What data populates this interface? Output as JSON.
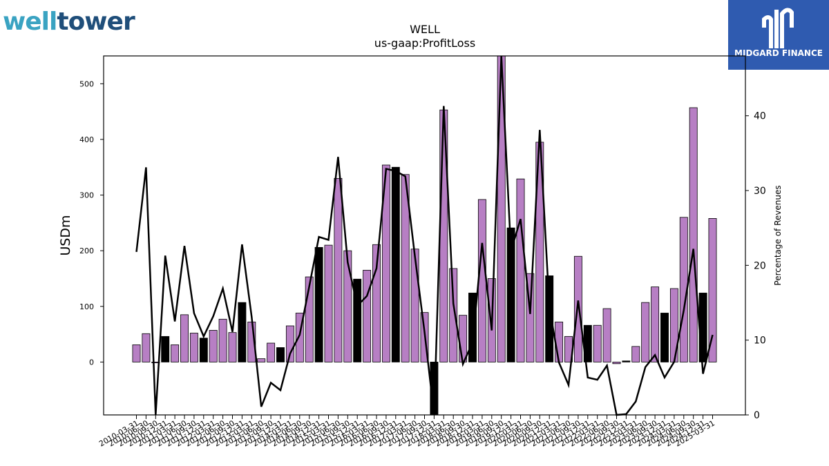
{
  "logos": {
    "left_part1": "well",
    "left_part2": "tower",
    "right_name": "MIDGARD FINANCE"
  },
  "chart_data": {
    "type": "bar",
    "title": "WELL",
    "subtitle": "us-gaap:ProfitLoss",
    "ylabel": "USDm",
    "y2label": "Percentage of Revenues",
    "ylim": [
      -95,
      550
    ],
    "y2lim": [
      0,
      48
    ],
    "yticks": [
      0,
      100,
      200,
      300,
      400,
      500
    ],
    "y2ticks": [
      0,
      10,
      20,
      30,
      40
    ],
    "colors": {
      "bar_default": "#b77fc4",
      "bar_highlight": "#000000",
      "line": "#000000"
    },
    "categories": [
      "2010-03-31",
      "2010-06-30",
      "2010-09-30",
      "2010-12-31",
      "2011-03-31",
      "2011-06-30",
      "2011-09-30",
      "2011-12-31",
      "2012-03-31",
      "2012-06-30",
      "2012-09-30",
      "2012-12-31",
      "2013-03-31",
      "2013-06-30",
      "2013-09-30",
      "2013-12-31",
      "2014-03-31",
      "2014-06-30",
      "2014-09-30",
      "2014-12-31",
      "2015-03-31",
      "2015-06-30",
      "2015-09-30",
      "2015-12-31",
      "2016-03-31",
      "2016-06-30",
      "2016-09-30",
      "2016-12-31",
      "2017-03-31",
      "2017-06-30",
      "2017-09-30",
      "2017-12-31",
      "2018-03-31",
      "2018-06-30",
      "2018-09-30",
      "2018-12-31",
      "2019-03-31",
      "2019-06-30",
      "2019-09-30",
      "2019-12-31",
      "2020-03-31",
      "2020-06-30",
      "2020-09-30",
      "2020-12-31",
      "2021-03-31",
      "2021-06-30",
      "2021-09-30",
      "2021-12-31",
      "2022-03-31",
      "2022-06-30",
      "2022-09-30",
      "2022-12-31",
      "2023-03-31",
      "2023-06-30",
      "2023-09-30",
      "2023-12-31",
      "2024-03-31",
      "2024-06-30",
      "2024-09-30",
      "2024-12-31",
      "2025-03-31"
    ],
    "xtick_labels": [
      "2010-03-31",
      "2010-06-30",
      "2010-09-30",
      "2010-12-31",
      "2011-03-31",
      "2011-06-30",
      "2011-09-30",
      "2011-12-31",
      "2012-03-31",
      "2012-06-30",
      "2012-09-30",
      "2012-12-31",
      "2013-03-31",
      "2013-06-30",
      "2013-09-30",
      "2013-12-31",
      "2014-03-31",
      "2014-06-30",
      "2014-09-30",
      "2014-12-31",
      "2015-03-31",
      "2015-06-30",
      "2015-09-30",
      "2015-12-31",
      "2016-03-31",
      "2016-06-30",
      "2016-09-30",
      "2016-12-31",
      "2017-03-31",
      "2017-06-30",
      "2017-09-30",
      "2017-12-31",
      "2018-03-31",
      "2018-06-30",
      "2018-09-30",
      "2018-12-31",
      "2019-03-31",
      "2019-06-30",
      "2019-09-30",
      "2019-12-31",
      "2020-03-31",
      "2020-06-30",
      "2020-09-30",
      "2020-12-31",
      "2021-03-31",
      "2021-06-30",
      "2021-09-30",
      "2021-12-31",
      "2022-03-31",
      "2022-06-30",
      "2022-09-30",
      "2022-12-31",
      "2023-03-31",
      "2023-06-30",
      "2023-09-30",
      "2023-12-31",
      "2024-03-31",
      "2024-06-30",
      "2024-09-30",
      "2024-12-31",
      "2025-03-31"
    ],
    "values": [
      31,
      51,
      0,
      46,
      31,
      85,
      52,
      43,
      57,
      77,
      53,
      107,
      72,
      6,
      34,
      26,
      65,
      88,
      153,
      206,
      210,
      330,
      200,
      149,
      165,
      211,
      354,
      350,
      337,
      203,
      89,
      -95,
      453,
      168,
      84,
      124,
      292,
      150,
      550,
      241,
      329,
      159,
      395,
      155,
      72,
      46,
      190,
      66,
      66,
      96,
      -3,
      2,
      28,
      107,
      135,
      88,
      132,
      260,
      457,
      124,
      258
    ],
    "highlight": [
      false,
      false,
      false,
      true,
      false,
      false,
      false,
      true,
      false,
      false,
      false,
      true,
      false,
      false,
      false,
      true,
      false,
      false,
      false,
      true,
      false,
      false,
      false,
      true,
      false,
      false,
      false,
      true,
      false,
      false,
      false,
      true,
      false,
      false,
      false,
      true,
      false,
      false,
      false,
      true,
      false,
      false,
      false,
      true,
      false,
      false,
      false,
      true,
      false,
      false,
      false,
      true,
      false,
      false,
      false,
      true,
      false,
      false,
      false,
      true,
      false
    ],
    "pct_of_revenues": [
      21.8,
      33.1,
      0,
      21.3,
      12.5,
      22.6,
      13.6,
      10.5,
      13.2,
      16.9,
      11.1,
      22.8,
      13.1,
      1.1,
      4.3,
      3.3,
      8.2,
      10.7,
      17.2,
      23.8,
      23.4,
      34.5,
      20.4,
      14.6,
      15.9,
      19.6,
      32.9,
      32.6,
      31.9,
      21.2,
      11.1,
      0,
      41.3,
      14.9,
      6.8,
      9.7,
      23,
      11.3,
      48,
      21.9,
      26.2,
      13.5,
      38.1,
      14.4,
      7,
      4,
      15.3,
      5,
      4.7,
      6.6,
      0,
      0.1,
      1.8,
      6.4,
      8,
      5,
      7.1,
      14,
      22.2,
      5.5,
      10.7
    ]
  }
}
